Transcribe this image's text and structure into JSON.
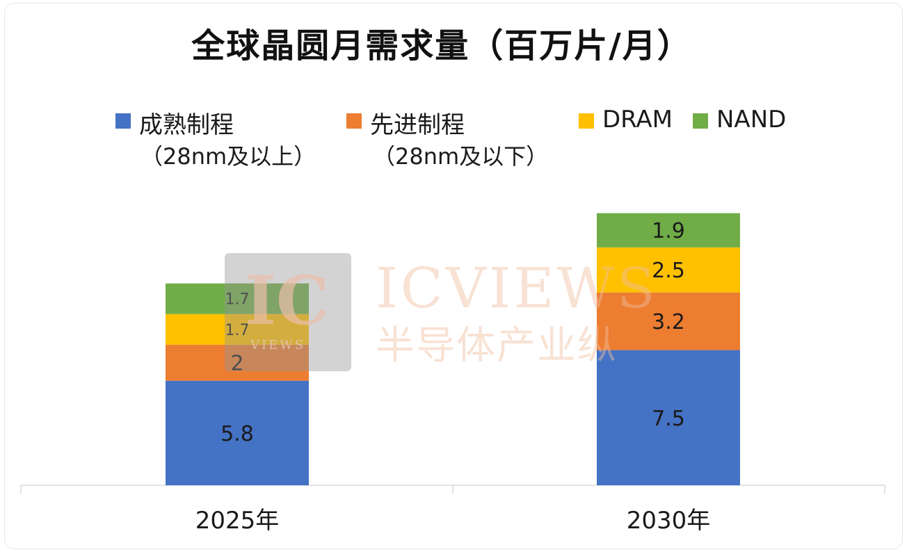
{
  "chart_data": {
    "type": "bar",
    "stacked": true,
    "title": "全球晶圆月需求量（百万片/月）",
    "categories": [
      "2025年",
      "2030年"
    ],
    "series": [
      {
        "name": "成熟制程",
        "sub": "（28nm及以上）",
        "color": "#4472C4",
        "values": [
          5.8,
          7.5
        ],
        "labels": [
          "5.8",
          "7.5"
        ]
      },
      {
        "name": "先进制程",
        "sub": "（28nm及以下）",
        "color": "#ED7D31",
        "values": [
          2,
          3.2
        ],
        "labels": [
          "2",
          "3.2"
        ]
      },
      {
        "name": "DRAM",
        "sub": "",
        "color": "#FFC000",
        "values": [
          1.7,
          2.5
        ],
        "labels": [
          "1.7",
          "2.5"
        ]
      },
      {
        "name": "NAND",
        "sub": "",
        "color": "#70AD47",
        "values": [
          1.7,
          1.9
        ],
        "labels": [
          "1.7",
          "1.9"
        ]
      }
    ],
    "ylim": [
      0,
      15.2
    ],
    "legend_position": "top",
    "grid": false
  },
  "watermark": {
    "logo": "IC",
    "logo_sub": "VIEWS",
    "name": "ICVIEWS",
    "tagline": "半导体产业纵"
  }
}
